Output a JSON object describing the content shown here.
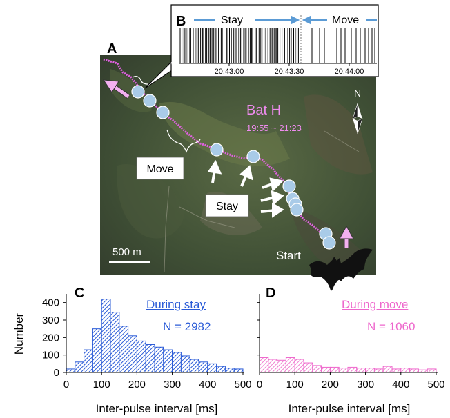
{
  "panel_labels": {
    "a": "A",
    "b": "B",
    "c": "C",
    "d": "D"
  },
  "map": {
    "bat_name": "Bat H",
    "time_range": "19:55 ~ 21:23",
    "north_label": "N",
    "scale_label": "500 m",
    "move_label": "Move",
    "stay_label": "Stay",
    "start_label": "Start",
    "colors": {
      "track": "#e060e0",
      "roost": "#a9cbe8",
      "bat_label": "#f08cf0",
      "arrow_pink": "#f4b0f0"
    }
  },
  "inset": {
    "stay_label": "Stay",
    "move_label": "Move",
    "tick_labels": [
      "20:43:00",
      "20:43:30",
      "20:44:00"
    ],
    "arrow_color": "#5b9bd5"
  },
  "chart_data": [
    {
      "type": "bar",
      "panel": "C",
      "title": "During stay",
      "annotation": "N = 2982",
      "xlabel": "Inter-pulse interval [ms]",
      "ylabel": "Number",
      "bin_width": 25,
      "x_bins_start": [
        0,
        25,
        50,
        75,
        100,
        125,
        150,
        175,
        200,
        225,
        250,
        275,
        300,
        325,
        350,
        375,
        400,
        425,
        450,
        475
      ],
      "values": [
        20,
        60,
        130,
        250,
        420,
        345,
        265,
        210,
        180,
        160,
        145,
        130,
        115,
        95,
        75,
        60,
        50,
        35,
        25,
        20
      ],
      "xlim": [
        0,
        500
      ],
      "ylim": [
        0,
        450
      ],
      "xticks": [
        0,
        100,
        200,
        300,
        400,
        500
      ],
      "yticks": [
        0,
        100,
        200,
        300,
        400
      ],
      "color": "#2a5bd7"
    },
    {
      "type": "bar",
      "panel": "D",
      "title": "During move",
      "annotation": "N = 1060",
      "xlabel": "Inter-pulse interval [ms]",
      "ylabel": "",
      "bin_width": 25,
      "x_bins_start": [
        0,
        25,
        50,
        75,
        100,
        125,
        150,
        175,
        200,
        225,
        250,
        275,
        300,
        325,
        350,
        375,
        400,
        425,
        450,
        475
      ],
      "values": [
        85,
        75,
        70,
        85,
        75,
        55,
        40,
        30,
        30,
        25,
        30,
        25,
        25,
        20,
        35,
        20,
        25,
        20,
        15,
        20
      ],
      "xlim": [
        0,
        500
      ],
      "ylim": [
        0,
        450
      ],
      "xticks": [
        0,
        100,
        200,
        300,
        400,
        500
      ],
      "yticks": [],
      "color": "#ee66cc"
    }
  ]
}
